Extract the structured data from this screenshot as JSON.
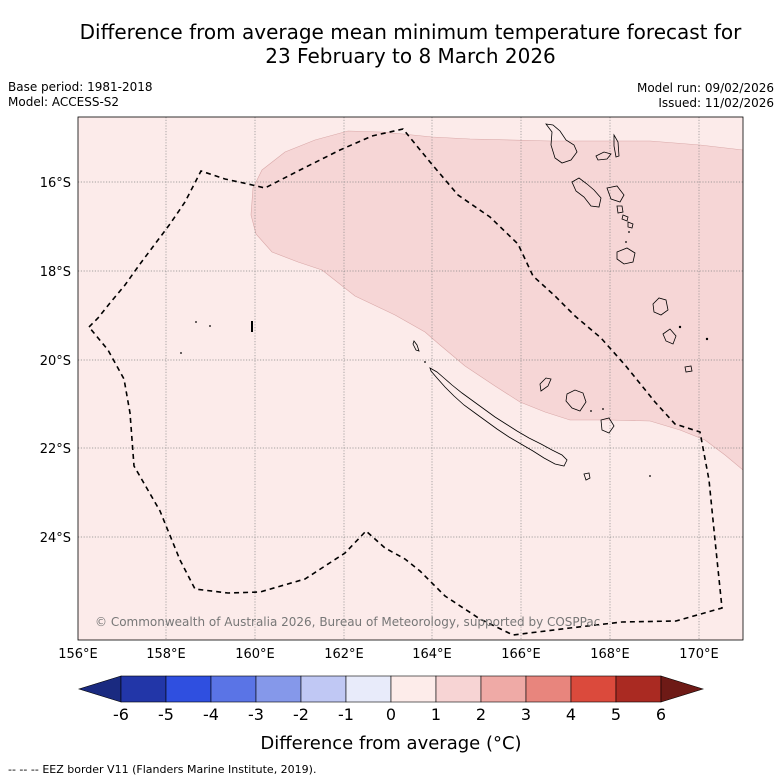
{
  "title_line1": "Difference from average mean minimum temperature forecast for",
  "title_line2": "23 February to 8 March 2026",
  "base_period": "Base period: 1981-2018",
  "model": "Model: ACCESS-S2",
  "model_run": "Model run: 09/02/2026",
  "issued": "Issued: 11/02/2026",
  "copyright": "© Commonwealth of Australia 2026, Bureau of Meteorology, supported by COSPPac",
  "lat_labels": [
    "16°S",
    "18°S",
    "20°S",
    "22°S",
    "24°S"
  ],
  "lon_labels": [
    "156°E",
    "158°E",
    "160°E",
    "162°E",
    "164°E",
    "166°E",
    "168°E",
    "170°E"
  ],
  "colorbar": {
    "title": "Difference from average (°C)",
    "ticks": [
      "-6",
      "-5",
      "-4",
      "-3",
      "-2",
      "-1",
      "0",
      "1",
      "2",
      "3",
      "4",
      "5",
      "6"
    ],
    "colors": [
      "#1a2a80",
      "#2236a8",
      "#2f4fe0",
      "#5a74e6",
      "#8598ea",
      "#c0c8f4",
      "#e8ebfa",
      "#fdecea",
      "#f7d4d4",
      "#efaaa6",
      "#e8857d",
      "#db4a3c",
      "#aa2a22",
      "#6e1a16"
    ]
  },
  "legend": {
    "eez_line": "-- -- -- ",
    "eez_label": "EEZ border V11 (Flanders Marine Institute, 2019)."
  }
}
